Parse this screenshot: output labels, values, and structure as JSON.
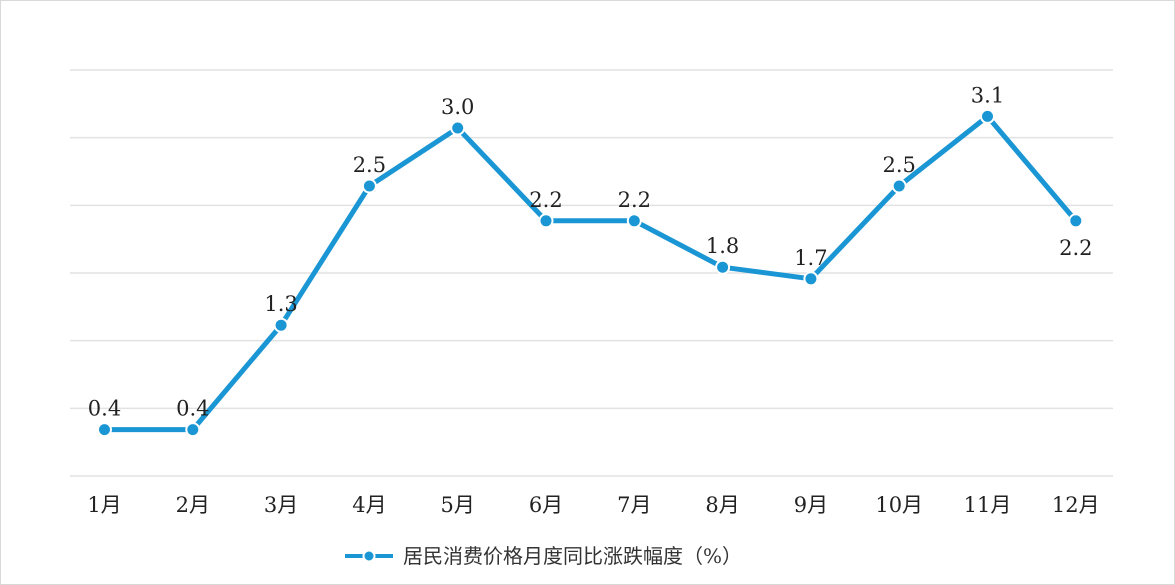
{
  "chart_data": {
    "type": "line",
    "categories": [
      "1月",
      "2月",
      "3月",
      "4月",
      "5月",
      "6月",
      "7月",
      "8月",
      "9月",
      "10月",
      "11月",
      "12月"
    ],
    "series": [
      {
        "name": "居民消费价格月度同比涨跌幅度（%）",
        "values": [
          0.4,
          0.4,
          1.3,
          2.5,
          3.0,
          2.2,
          2.2,
          1.8,
          1.7,
          2.5,
          3.1,
          2.2
        ],
        "labels": [
          "0.4",
          "0.4",
          "1.3",
          "2.5",
          "3.0",
          "2.2",
          "2.2",
          "1.8",
          "1.7",
          "2.5",
          "3.1",
          "2.2"
        ]
      }
    ],
    "ylim": [
      0,
      3.5
    ],
    "grid": true,
    "legend_position": "bottom-center",
    "colors": {
      "line": "#1a96d4",
      "grid": "#e2e2e2",
      "marker_stroke": "#ffffff"
    }
  }
}
